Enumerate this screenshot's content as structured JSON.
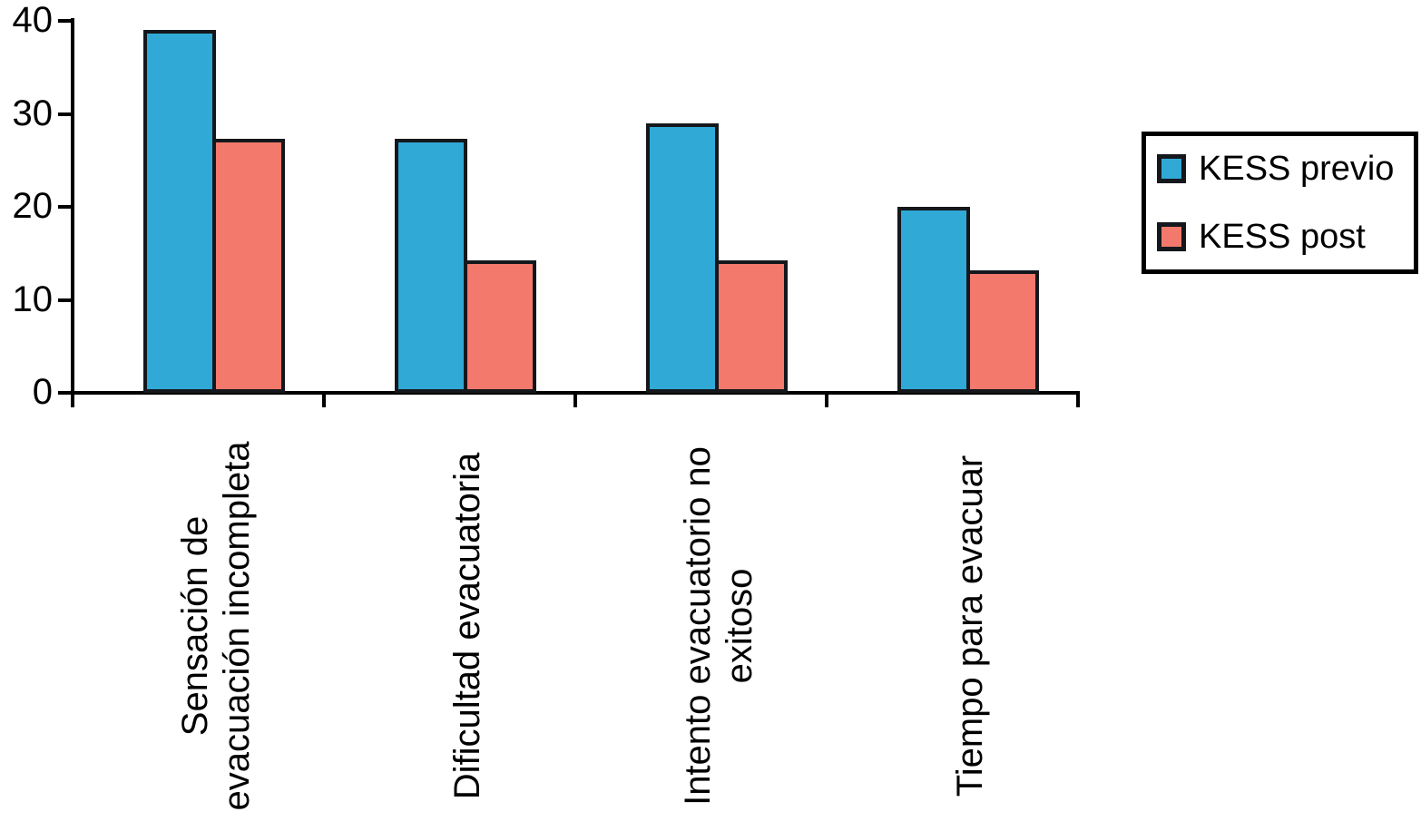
{
  "chart_data": {
    "type": "bar",
    "title": "",
    "xlabel": "",
    "ylabel": "",
    "categories": [
      "Sensación de evacuación incompleta",
      "Dificultad evacuatoria",
      "Intento evacuatorio no exitoso",
      "Tiempo para evacuar"
    ],
    "category_label_lines": [
      [
        "Sensación de",
        "evacuación incompleta"
      ],
      [
        "Dificultad evacuatoria"
      ],
      [
        "Intento evacuatorio no",
        "exitoso"
      ],
      [
        "Tiempo para evacuar"
      ]
    ],
    "series": [
      {
        "name": "KESS previo",
        "color": "#30A9D6",
        "values": [
          39,
          27.3,
          29,
          20
        ]
      },
      {
        "name": "KESS post",
        "color": "#F3796C",
        "values": [
          27.3,
          14.2,
          14.2,
          13.2
        ]
      }
    ],
    "ylim": [
      0,
      40
    ],
    "yticks": [
      0,
      10,
      20,
      30,
      40
    ],
    "grid": false,
    "legend_position": "right",
    "bar_outline_color": "#14181c",
    "axis_color": "#000000",
    "background_color": "#ffffff"
  }
}
